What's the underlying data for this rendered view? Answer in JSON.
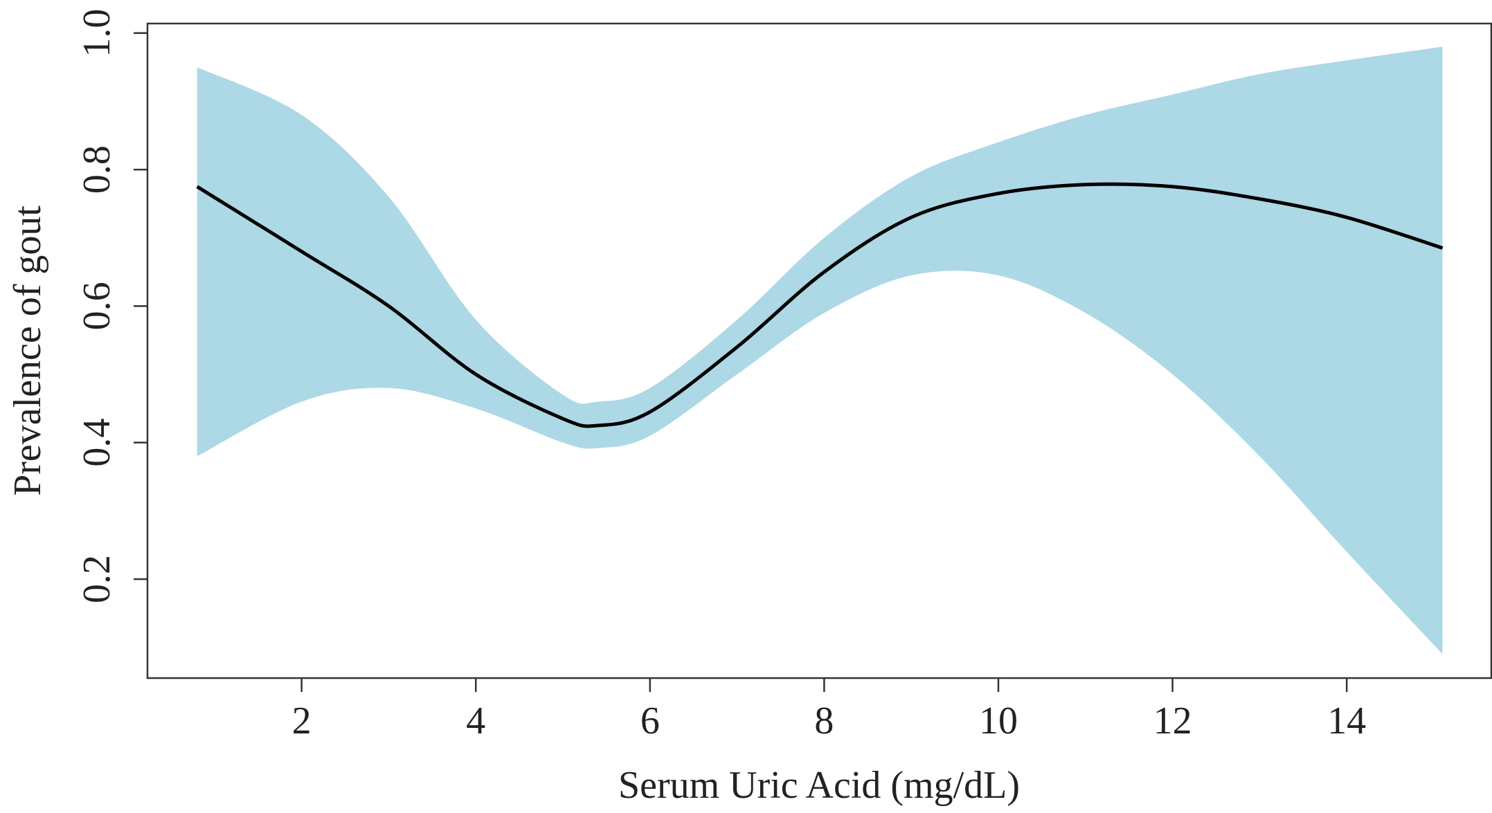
{
  "chart_data": {
    "type": "line",
    "x_label": "Serum Uric Acid (mg/dL)",
    "y_label": "Prevalence of gout",
    "x": [
      0.8,
      2,
      3,
      4,
      5,
      5.4,
      6,
      7,
      8,
      9,
      10,
      11,
      12,
      13,
      14,
      15.1
    ],
    "values": [
      0.775,
      0.68,
      0.6,
      0.5,
      0.435,
      0.425,
      0.445,
      0.54,
      0.65,
      0.73,
      0.765,
      0.778,
      0.775,
      0.757,
      0.73,
      0.685
    ],
    "upper": [
      0.95,
      0.88,
      0.76,
      0.58,
      0.47,
      0.46,
      0.48,
      0.58,
      0.7,
      0.79,
      0.84,
      0.88,
      0.91,
      0.94,
      0.96,
      0.98
    ],
    "lower": [
      0.38,
      0.46,
      0.48,
      0.45,
      0.4,
      0.392,
      0.41,
      0.5,
      0.59,
      0.645,
      0.645,
      0.59,
      0.5,
      0.38,
      0.24,
      0.09
    ],
    "color": "#000000",
    "band_color": "#add8e6",
    "xlim": [
      0.23,
      15.66
    ],
    "ylim": [
      0.055,
      1.014
    ],
    "xticks": [
      2,
      4,
      6,
      8,
      10,
      12,
      14
    ],
    "yticks": [
      0.2,
      0.4,
      0.6,
      0.8,
      {
        "value": 1,
        "label": "1.0"
      }
    ]
  }
}
